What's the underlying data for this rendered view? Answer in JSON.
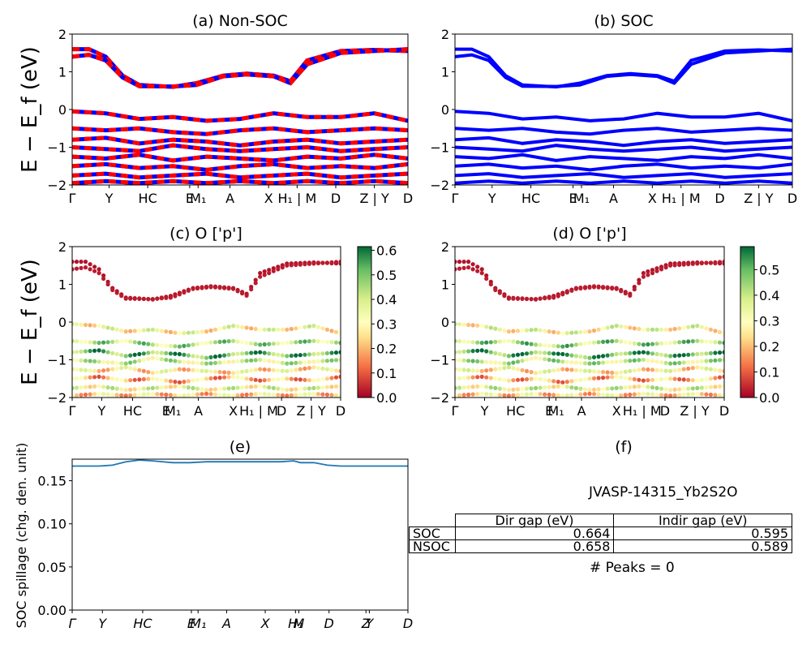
{
  "panels": {
    "a": {
      "title": "(a) Non-SOC"
    },
    "b": {
      "title": "(b) SOC"
    },
    "c": {
      "title": "(c)  O ['p']"
    },
    "d": {
      "title": "(d) O ['p']"
    },
    "e": {
      "title": "(e)"
    },
    "f": {
      "title": "(f)"
    }
  },
  "ylabel_band": "E − E_f (eV)",
  "ylabel_spillage": "SOC spillage (chg. den. unit)",
  "kpath_labels": [
    "Γ",
    "Y",
    "HC",
    "E",
    "M₁",
    "A",
    "X",
    "H₁ | M",
    "D",
    "Z | Y",
    "D"
  ],
  "kpath_labels_cd": [
    "Γ",
    "Y",
    "HC",
    "E",
    "M₁",
    "A",
    "X",
    "H₁ | M",
    "D",
    "Z | Y",
    "D"
  ],
  "kpath_labels_e": [
    "Γ",
    "Y",
    "HC",
    "E",
    "M₁",
    "A",
    "X",
    "H₁",
    "M",
    "D",
    "Z",
    "Y",
    "D"
  ],
  "band_yticks": [
    "2",
    "1",
    "0",
    "−1",
    "−2"
  ],
  "colorbar_c_ticks": [
    "0.6",
    "0.5",
    "0.4",
    "0.3",
    "0.2",
    "0.1",
    "0.0"
  ],
  "colorbar_d_ticks": [
    "0.5",
    "0.4",
    "0.3",
    "0.2",
    "0.1",
    "0.0"
  ],
  "spillage_yticks": [
    "0.15",
    "0.10",
    "0.05",
    "0.00"
  ],
  "material": "JVASP-14315_Yb2S2O",
  "table": {
    "headers": [
      "Dir gap (eV)",
      "Indir gap (eV)"
    ],
    "rows": [
      {
        "label": "SOC",
        "dir": "0.664",
        "indir": "0.595"
      },
      {
        "label": "NSOC",
        "dir": "0.658",
        "indir": "0.589"
      }
    ]
  },
  "peaks": "# Peaks = 0",
  "colors": {
    "nonsoc_a": "#ff0000",
    "nonsoc_b": "#0000ff",
    "soc": "#0000ff",
    "spillage": "#1f77b4"
  },
  "chart_data": [
    {
      "type": "line",
      "title": "(a) Non-SOC",
      "ylabel": "E − E_f (eV)",
      "ylim": [
        -2,
        2
      ],
      "xlim": [
        0,
        1
      ],
      "series": [
        {
          "x": [
            0,
            0.05,
            0.1,
            0.15,
            0.2,
            0.3,
            0.37,
            0.45,
            0.52,
            0.6,
            0.65,
            0.7,
            0.8,
            0.9,
            1
          ],
          "values": [
            1.6,
            1.6,
            1.4,
            0.9,
            0.65,
            0.6,
            0.7,
            0.9,
            0.95,
            0.9,
            0.75,
            1.3,
            1.55,
            1.58,
            1.55
          ]
        },
        {
          "x": [
            0,
            0.05,
            0.1,
            0.15,
            0.2,
            0.3,
            0.37,
            0.45,
            0.52,
            0.6,
            0.65,
            0.7,
            0.8,
            0.9,
            1
          ],
          "values": [
            1.4,
            1.45,
            1.3,
            0.85,
            0.62,
            0.61,
            0.65,
            0.88,
            0.93,
            0.88,
            0.7,
            1.2,
            1.5,
            1.55,
            1.6
          ]
        },
        {
          "x": [
            0,
            0.1,
            0.2,
            0.3,
            0.4,
            0.5,
            0.6,
            0.7,
            0.8,
            0.9,
            1
          ],
          "values": [
            -0.05,
            -0.1,
            -0.25,
            -0.2,
            -0.3,
            -0.25,
            -0.1,
            -0.2,
            -0.2,
            -0.1,
            -0.3
          ]
        },
        {
          "x": [
            0,
            0.1,
            0.2,
            0.3,
            0.4,
            0.5,
            0.6,
            0.7,
            0.8,
            0.9,
            1
          ],
          "values": [
            -0.5,
            -0.55,
            -0.5,
            -0.6,
            -0.65,
            -0.55,
            -0.5,
            -0.6,
            -0.55,
            -0.5,
            -0.55
          ]
        },
        {
          "x": [
            0,
            0.1,
            0.2,
            0.3,
            0.4,
            0.5,
            0.6,
            0.7,
            0.8,
            0.9,
            1
          ],
          "values": [
            -0.8,
            -0.75,
            -0.9,
            -0.8,
            -0.85,
            -0.95,
            -0.85,
            -0.8,
            -0.9,
            -0.85,
            -0.8
          ]
        },
        {
          "x": [
            0,
            0.1,
            0.2,
            0.3,
            0.4,
            0.5,
            0.6,
            0.7,
            0.8,
            0.9,
            1
          ],
          "values": [
            -1.0,
            -1.05,
            -1.1,
            -0.95,
            -1.05,
            -1.1,
            -1.05,
            -1.0,
            -1.1,
            -1.05,
            -1.0
          ]
        },
        {
          "x": [
            0,
            0.1,
            0.2,
            0.3,
            0.4,
            0.5,
            0.6,
            0.7,
            0.8,
            0.9,
            1
          ],
          "values": [
            -1.25,
            -1.3,
            -1.2,
            -1.35,
            -1.25,
            -1.3,
            -1.35,
            -1.25,
            -1.3,
            -1.2,
            -1.3
          ]
        },
        {
          "x": [
            0,
            0.1,
            0.2,
            0.3,
            0.4,
            0.5,
            0.6,
            0.7,
            0.8,
            0.9,
            1
          ],
          "values": [
            -1.5,
            -1.45,
            -1.55,
            -1.5,
            -1.6,
            -1.5,
            -1.45,
            -1.55,
            -1.5,
            -1.55,
            -1.45
          ]
        },
        {
          "x": [
            0,
            0.1,
            0.2,
            0.3,
            0.4,
            0.5,
            0.6,
            0.7,
            0.8,
            0.9,
            1
          ],
          "values": [
            -1.75,
            -1.7,
            -1.8,
            -1.75,
            -1.7,
            -1.8,
            -1.75,
            -1.7,
            -1.8,
            -1.75,
            -1.7
          ]
        },
        {
          "x": [
            0,
            0.1,
            0.2,
            0.3,
            0.4,
            0.5,
            0.6,
            0.7,
            0.8,
            0.9,
            1
          ],
          "values": [
            -1.95,
            -1.9,
            -1.95,
            -1.9,
            -1.95,
            -1.9,
            -1.95,
            -1.9,
            -1.95,
            -1.9,
            -1.95
          ]
        }
      ]
    },
    {
      "type": "line",
      "title": "(b) SOC",
      "ylim": [
        -2,
        2
      ],
      "xlim": [
        0,
        1
      ],
      "series": [
        {
          "x": [
            0,
            0.05,
            0.1,
            0.15,
            0.2,
            0.3,
            0.37,
            0.45,
            0.52,
            0.6,
            0.65,
            0.7,
            0.8,
            0.9,
            1
          ],
          "values": [
            1.6,
            1.6,
            1.4,
            0.9,
            0.65,
            0.6,
            0.7,
            0.9,
            0.95,
            0.9,
            0.75,
            1.3,
            1.55,
            1.58,
            1.55
          ]
        },
        {
          "x": [
            0,
            0.05,
            0.1,
            0.15,
            0.2,
            0.3,
            0.37,
            0.45,
            0.52,
            0.6,
            0.65,
            0.7,
            0.8,
            0.9,
            1
          ],
          "values": [
            1.4,
            1.45,
            1.3,
            0.85,
            0.62,
            0.61,
            0.65,
            0.88,
            0.93,
            0.88,
            0.7,
            1.2,
            1.5,
            1.55,
            1.6
          ]
        },
        {
          "x": [
            0,
            0.1,
            0.2,
            0.3,
            0.4,
            0.5,
            0.6,
            0.7,
            0.8,
            0.9,
            1
          ],
          "values": [
            -0.05,
            -0.1,
            -0.25,
            -0.2,
            -0.3,
            -0.25,
            -0.1,
            -0.2,
            -0.2,
            -0.1,
            -0.3
          ]
        },
        {
          "x": [
            0,
            0.1,
            0.2,
            0.3,
            0.4,
            0.5,
            0.6,
            0.7,
            0.8,
            0.9,
            1
          ],
          "values": [
            -0.5,
            -0.55,
            -0.5,
            -0.6,
            -0.65,
            -0.55,
            -0.5,
            -0.6,
            -0.55,
            -0.5,
            -0.55
          ]
        },
        {
          "x": [
            0,
            0.1,
            0.2,
            0.3,
            0.4,
            0.5,
            0.6,
            0.7,
            0.8,
            0.9,
            1
          ],
          "values": [
            -0.8,
            -0.75,
            -0.9,
            -0.8,
            -0.85,
            -0.95,
            -0.85,
            -0.8,
            -0.9,
            -0.85,
            -0.8
          ]
        },
        {
          "x": [
            0,
            0.1,
            0.2,
            0.3,
            0.4,
            0.5,
            0.6,
            0.7,
            0.8,
            0.9,
            1
          ],
          "values": [
            -1.0,
            -1.05,
            -1.1,
            -0.95,
            -1.05,
            -1.1,
            -1.05,
            -1.0,
            -1.1,
            -1.05,
            -1.0
          ]
        },
        {
          "x": [
            0,
            0.1,
            0.2,
            0.3,
            0.4,
            0.5,
            0.6,
            0.7,
            0.8,
            0.9,
            1
          ],
          "values": [
            -1.25,
            -1.3,
            -1.2,
            -1.35,
            -1.25,
            -1.3,
            -1.35,
            -1.25,
            -1.3,
            -1.2,
            -1.3
          ]
        },
        {
          "x": [
            0,
            0.1,
            0.2,
            0.3,
            0.4,
            0.5,
            0.6,
            0.7,
            0.8,
            0.9,
            1
          ],
          "values": [
            -1.5,
            -1.45,
            -1.55,
            -1.5,
            -1.6,
            -1.5,
            -1.45,
            -1.55,
            -1.5,
            -1.55,
            -1.45
          ]
        },
        {
          "x": [
            0,
            0.1,
            0.2,
            0.3,
            0.4,
            0.5,
            0.6,
            0.7,
            0.8,
            0.9,
            1
          ],
          "values": [
            -1.75,
            -1.7,
            -1.8,
            -1.75,
            -1.7,
            -1.8,
            -1.75,
            -1.7,
            -1.8,
            -1.75,
            -1.7
          ]
        },
        {
          "x": [
            0,
            0.1,
            0.2,
            0.3,
            0.4,
            0.5,
            0.6,
            0.7,
            0.8,
            0.9,
            1
          ],
          "values": [
            -1.95,
            -1.9,
            -1.95,
            -1.9,
            -1.95,
            -1.9,
            -1.95,
            -1.9,
            -1.95,
            -1.9,
            -1.95
          ]
        }
      ]
    },
    {
      "type": "scatter",
      "title": "(c)  O ['p']",
      "ylim": [
        -2,
        2
      ],
      "colorbar_range": [
        0,
        0.6
      ],
      "bands": [
        {
          "x": [
            0,
            0.05,
            0.1,
            0.15,
            0.2,
            0.3,
            0.37,
            0.45,
            0.52,
            0.6,
            0.65,
            0.7,
            0.8,
            0.9,
            1
          ],
          "values": [
            1.6,
            1.6,
            1.4,
            0.9,
            0.65,
            0.6,
            0.7,
            0.9,
            0.95,
            0.9,
            0.75,
            1.3,
            1.55,
            1.58,
            1.55
          ],
          "weight": 0.02
        },
        {
          "x": [
            0,
            0.05,
            0.1,
            0.15,
            0.2,
            0.3,
            0.37,
            0.45,
            0.52,
            0.6,
            0.65,
            0.7,
            0.8,
            0.9,
            1
          ],
          "values": [
            1.4,
            1.45,
            1.3,
            0.85,
            0.62,
            0.61,
            0.65,
            0.88,
            0.93,
            0.88,
            0.7,
            1.2,
            1.5,
            1.55,
            1.6
          ],
          "weight": 0.03
        },
        {
          "x": [
            0,
            0.1,
            0.2,
            0.3,
            0.4,
            0.5,
            0.6,
            0.7,
            0.8,
            0.9,
            1
          ],
          "values": [
            -0.05,
            -0.1,
            -0.25,
            -0.2,
            -0.3,
            -0.25,
            -0.1,
            -0.2,
            -0.2,
            -0.1,
            -0.3
          ],
          "weight": 0.3
        },
        {
          "x": [
            0,
            0.1,
            0.2,
            0.3,
            0.4,
            0.5,
            0.6,
            0.7,
            0.8,
            0.9,
            1
          ],
          "values": [
            -0.5,
            -0.55,
            -0.5,
            -0.6,
            -0.65,
            -0.55,
            -0.5,
            -0.6,
            -0.55,
            -0.5,
            -0.55
          ],
          "weight": 0.42
        },
        {
          "x": [
            0,
            0.1,
            0.2,
            0.3,
            0.4,
            0.5,
            0.6,
            0.7,
            0.8,
            0.9,
            1
          ],
          "values": [
            -0.8,
            -0.75,
            -0.9,
            -0.8,
            -0.85,
            -0.95,
            -0.85,
            -0.8,
            -0.9,
            -0.85,
            -0.8
          ],
          "weight": 0.5
        },
        {
          "x": [
            0,
            0.1,
            0.2,
            0.3,
            0.4,
            0.5,
            0.6,
            0.7,
            0.8,
            0.9,
            1
          ],
          "values": [
            -1.0,
            -1.05,
            -1.1,
            -0.95,
            -1.05,
            -1.1,
            -1.05,
            -1.0,
            -1.1,
            -1.05,
            -1.0
          ],
          "weight": 0.38
        },
        {
          "x": [
            0,
            0.1,
            0.2,
            0.3,
            0.4,
            0.5,
            0.6,
            0.7,
            0.8,
            0.9,
            1
          ],
          "values": [
            -1.25,
            -1.3,
            -1.2,
            -1.35,
            -1.25,
            -1.3,
            -1.35,
            -1.25,
            -1.3,
            -1.2,
            -1.3
          ],
          "weight": 0.27
        },
        {
          "x": [
            0,
            0.1,
            0.2,
            0.3,
            0.4,
            0.5,
            0.6,
            0.7,
            0.8,
            0.9,
            1
          ],
          "values": [
            -1.5,
            -1.45,
            -1.55,
            -1.5,
            -1.6,
            -1.5,
            -1.45,
            -1.55,
            -1.5,
            -1.55,
            -1.45
          ],
          "weight": 0.2
        },
        {
          "x": [
            0,
            0.1,
            0.2,
            0.3,
            0.4,
            0.5,
            0.6,
            0.7,
            0.8,
            0.9,
            1
          ],
          "values": [
            -1.75,
            -1.7,
            -1.8,
            -1.75,
            -1.7,
            -1.8,
            -1.75,
            -1.7,
            -1.8,
            -1.75,
            -1.7
          ],
          "weight": 0.33
        },
        {
          "x": [
            0,
            0.1,
            0.2,
            0.3,
            0.4,
            0.5,
            0.6,
            0.7,
            0.8,
            0.9,
            1
          ],
          "values": [
            -1.95,
            -1.9,
            -1.95,
            -1.9,
            -1.95,
            -1.9,
            -1.95,
            -1.9,
            -1.95,
            -1.9,
            -1.95
          ],
          "weight": 0.24
        }
      ]
    },
    {
      "type": "scatter",
      "title": "(d) O ['p']",
      "ylim": [
        -2,
        2
      ],
      "colorbar_range": [
        0,
        0.58
      ],
      "same_bands_as": "(c)  O ['p']"
    },
    {
      "type": "line",
      "title": "(e)",
      "ylabel": "SOC spillage (chg. den. unit)",
      "ylim": [
        0,
        0.175
      ],
      "x": [
        0,
        0.08,
        0.12,
        0.16,
        0.2,
        0.24,
        0.3,
        0.35,
        0.4,
        0.48,
        0.55,
        0.62,
        0.66,
        0.68,
        0.72,
        0.76,
        0.8,
        0.9,
        1
      ],
      "series": [
        {
          "values": [
            0.167,
            0.167,
            0.168,
            0.172,
            0.174,
            0.173,
            0.171,
            0.171,
            0.172,
            0.172,
            0.172,
            0.172,
            0.173,
            0.171,
            0.171,
            0.168,
            0.167,
            0.167,
            0.167
          ]
        }
      ]
    }
  ]
}
